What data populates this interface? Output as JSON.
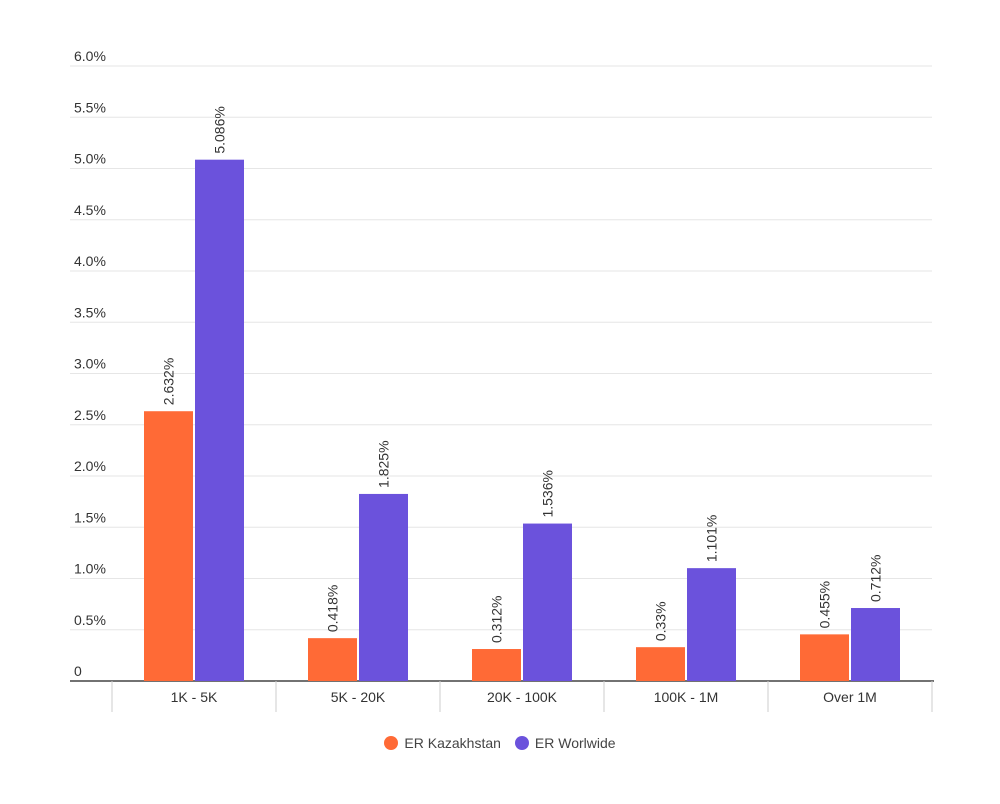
{
  "chart_data": {
    "type": "bar",
    "categories": [
      "1K - 5K",
      "5K - 20K",
      "20K - 100K",
      "100K - 1M",
      "Over 1M"
    ],
    "series": [
      {
        "name": "ER Kazakhstan",
        "color": "#ff6a36",
        "values": [
          2.632,
          0.418,
          0.312,
          0.33,
          0.455
        ],
        "labels": [
          "2.632%",
          "0.418%",
          "0.312%",
          "0.33%",
          "0.455%"
        ]
      },
      {
        "name": "ER Worlwide",
        "color": "#6b52dc",
        "values": [
          5.086,
          1.825,
          1.536,
          1.101,
          0.712
        ],
        "labels": [
          "5.086%",
          "1.825%",
          "1.536%",
          "1.101%",
          "0.712%"
        ]
      }
    ],
    "yticks": [
      "0",
      "0.5%",
      "1.0%",
      "1.5%",
      "2.0%",
      "2.5%",
      "3.0%",
      "3.5%",
      "4.0%",
      "4.5%",
      "5.0%",
      "5.5%",
      "6.0%"
    ],
    "ylim": [
      0,
      6
    ],
    "grid": true,
    "legend_position": "bottom-center",
    "title": "",
    "xlabel": "",
    "ylabel": ""
  }
}
